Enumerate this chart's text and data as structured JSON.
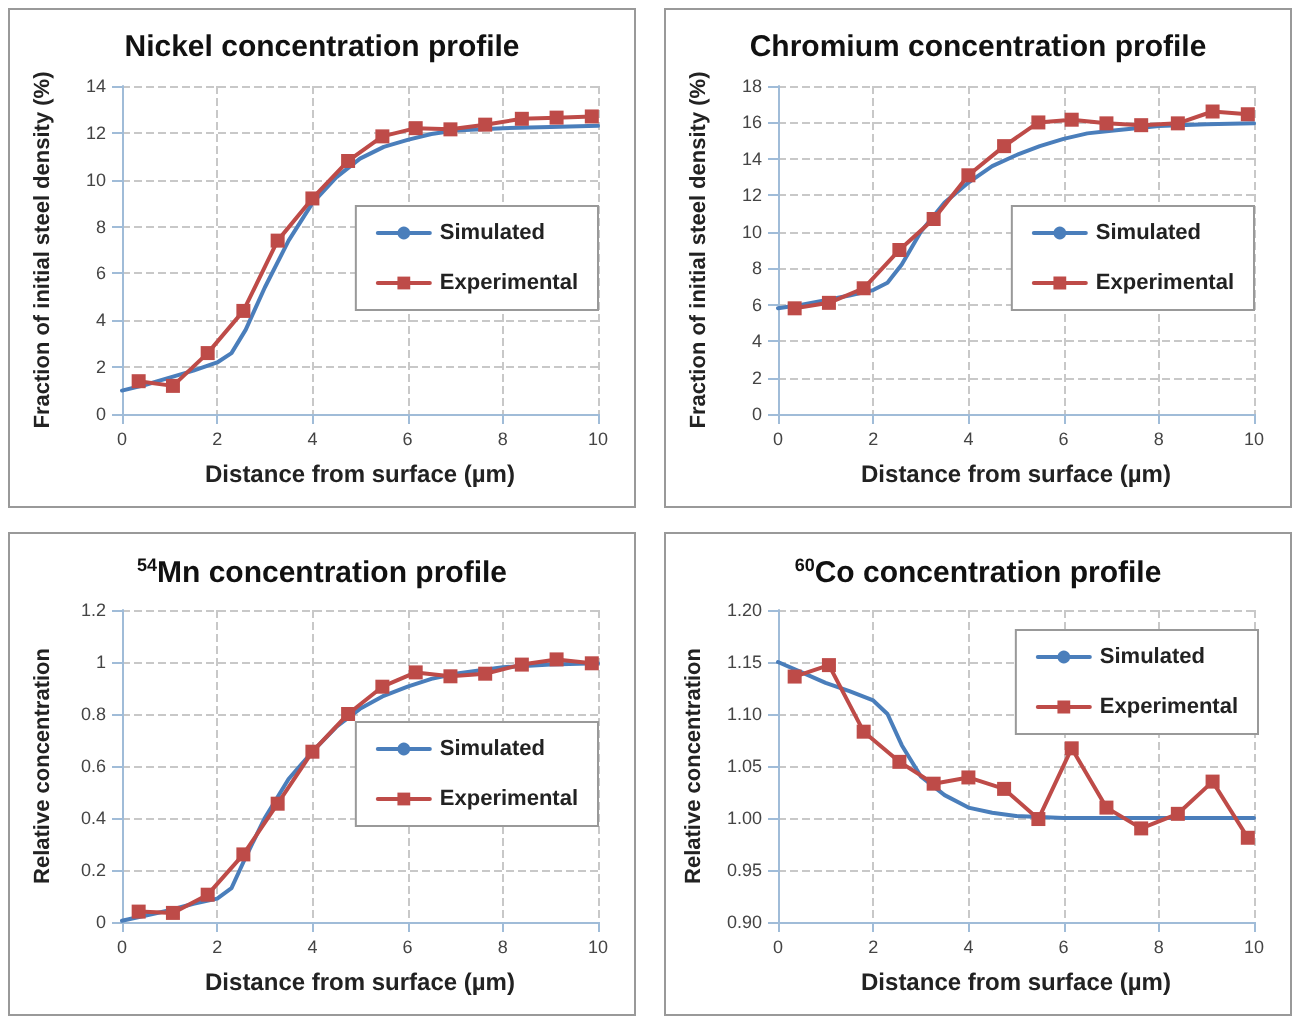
{
  "chart_data": [
    {
      "type": "line",
      "title": "Nickel concentration profile",
      "xlabel": "Distance from surface (µm)",
      "ylabel": "Fraction of initial steel density (%)",
      "xlim": [
        0,
        10
      ],
      "xticks": [
        0,
        2,
        4,
        6,
        8,
        10
      ],
      "ylim": [
        0,
        14
      ],
      "yticks": [
        0,
        2,
        4,
        6,
        8,
        10,
        12,
        14
      ],
      "grid": true,
      "legend": "right",
      "series": [
        {
          "name": "Simulated",
          "color": "#4a7ebb",
          "marker": "none",
          "x": [
            0,
            0.5,
            1,
            1.5,
            2,
            2.3,
            2.6,
            3,
            3.5,
            4,
            4.5,
            5,
            5.5,
            6,
            6.5,
            7,
            8,
            9,
            10
          ],
          "values": [
            1.0,
            1.25,
            1.55,
            1.85,
            2.2,
            2.6,
            3.6,
            5.4,
            7.4,
            9.0,
            10.1,
            10.9,
            11.4,
            11.7,
            11.95,
            12.1,
            12.2,
            12.25,
            12.3
          ]
        },
        {
          "name": "Experimental",
          "color": "#be4b48",
          "marker": "square",
          "x": [
            0.35,
            1.07,
            1.8,
            2.55,
            3.27,
            4.0,
            4.75,
            5.47,
            6.17,
            6.9,
            7.63,
            8.4,
            9.13,
            9.87
          ],
          "values": [
            1.4,
            1.2,
            2.6,
            4.4,
            7.4,
            9.2,
            10.8,
            11.85,
            12.2,
            12.15,
            12.35,
            12.6,
            12.65,
            12.7
          ]
        }
      ]
    },
    {
      "type": "line",
      "title": "Chromium concentration profile",
      "xlabel": "Distance from surface (µm)",
      "ylabel": "Fraction of initial steel density (%)",
      "xlim": [
        0,
        10
      ],
      "xticks": [
        0,
        2,
        4,
        6,
        8,
        10
      ],
      "ylim": [
        0,
        18
      ],
      "yticks": [
        0,
        2,
        4,
        6,
        8,
        10,
        12,
        14,
        16,
        18
      ],
      "grid": true,
      "legend": "right",
      "series": [
        {
          "name": "Simulated",
          "color": "#4a7ebb",
          "marker": "none",
          "x": [
            0,
            0.5,
            1,
            1.5,
            2,
            2.3,
            2.6,
            3,
            3.5,
            4,
            4.5,
            5,
            5.5,
            6,
            6.5,
            7,
            8,
            9,
            10
          ],
          "values": [
            5.8,
            6.0,
            6.25,
            6.5,
            6.8,
            7.2,
            8.2,
            10.0,
            11.6,
            12.7,
            13.6,
            14.2,
            14.7,
            15.1,
            15.4,
            15.55,
            15.8,
            15.9,
            15.95
          ]
        },
        {
          "name": "Experimental",
          "color": "#be4b48",
          "marker": "square",
          "x": [
            0.35,
            1.07,
            1.8,
            2.55,
            3.27,
            4.0,
            4.75,
            5.47,
            6.17,
            6.9,
            7.63,
            8.4,
            9.13,
            9.87
          ],
          "values": [
            5.8,
            6.1,
            6.9,
            9.0,
            10.7,
            13.1,
            14.7,
            16.0,
            16.15,
            15.95,
            15.85,
            15.95,
            16.6,
            16.45
          ]
        }
      ]
    },
    {
      "type": "line",
      "title": "$^{54}$Mn concentration profile",
      "xlabel": "Distance from surface (µm)",
      "ylabel": "Relative concentration",
      "xlim": [
        0,
        10
      ],
      "xticks": [
        0,
        2,
        4,
        6,
        8,
        10
      ],
      "ylim": [
        0,
        1.2
      ],
      "yticks": [
        0,
        0.2,
        0.4,
        0.6,
        0.8,
        1,
        1.2
      ],
      "grid": true,
      "legend": "right",
      "series": [
        {
          "name": "Simulated",
          "color": "#4a7ebb",
          "marker": "none",
          "x": [
            0,
            0.5,
            1,
            1.5,
            2,
            2.3,
            2.6,
            3,
            3.5,
            4,
            4.5,
            5,
            5.5,
            6,
            6.5,
            7,
            8,
            9,
            10
          ],
          "values": [
            0.005,
            0.025,
            0.045,
            0.07,
            0.09,
            0.13,
            0.25,
            0.4,
            0.55,
            0.655,
            0.75,
            0.82,
            0.87,
            0.905,
            0.935,
            0.955,
            0.98,
            0.99,
            0.995
          ]
        },
        {
          "name": "Experimental",
          "color": "#be4b48",
          "marker": "square",
          "x": [
            0.35,
            1.07,
            1.8,
            2.55,
            3.27,
            4.0,
            4.75,
            5.47,
            6.17,
            6.9,
            7.63,
            8.4,
            9.13,
            9.87
          ],
          "values": [
            0.04,
            0.035,
            0.105,
            0.26,
            0.455,
            0.655,
            0.8,
            0.905,
            0.96,
            0.945,
            0.955,
            0.99,
            1.01,
            0.995
          ]
        }
      ]
    },
    {
      "type": "line",
      "title": "$^{60}$Co concentration profile",
      "xlabel": "Distance from surface (µm)",
      "ylabel": "Relative concentration",
      "xlim": [
        0,
        10
      ],
      "xticks": [
        0,
        2,
        4,
        6,
        8,
        10
      ],
      "ylim": [
        0.9,
        1.2
      ],
      "yticks": [
        {
          "value": 0.9,
          "label": "0.90"
        },
        {
          "value": 0.95,
          "label": "0.95"
        },
        {
          "value": 1,
          "label": "1.00"
        },
        {
          "value": 1.05,
          "label": "1.05"
        },
        {
          "value": 1.1,
          "label": "1.10"
        },
        {
          "value": 1.15,
          "label": "1.15"
        },
        {
          "value": 1.2,
          "label": "1.20"
        }
      ],
      "grid": true,
      "legend": "top right",
      "series": [
        {
          "name": "Simulated",
          "color": "#4a7ebb",
          "marker": "none",
          "x": [
            0,
            0.5,
            1,
            1.5,
            2,
            2.3,
            2.6,
            3,
            3.5,
            4,
            4.5,
            5,
            6,
            7,
            8,
            10
          ],
          "values": [
            1.15,
            1.14,
            1.13,
            1.122,
            1.113,
            1.1,
            1.07,
            1.04,
            1.022,
            1.01,
            1.005,
            1.002,
            1.0,
            1.0,
            1.0,
            1.0
          ]
        },
        {
          "name": "Experimental",
          "color": "#be4b48",
          "marker": "square",
          "x": [
            0.35,
            1.07,
            1.8,
            2.55,
            3.27,
            4.0,
            4.75,
            5.47,
            6.17,
            6.9,
            7.63,
            8.4,
            9.13,
            9.87
          ],
          "values": [
            1.136,
            1.147,
            1.083,
            1.054,
            1.033,
            1.039,
            1.028,
            0.999,
            1.067,
            1.01,
            0.99,
            1.004,
            1.035,
            0.981
          ]
        }
      ]
    }
  ]
}
